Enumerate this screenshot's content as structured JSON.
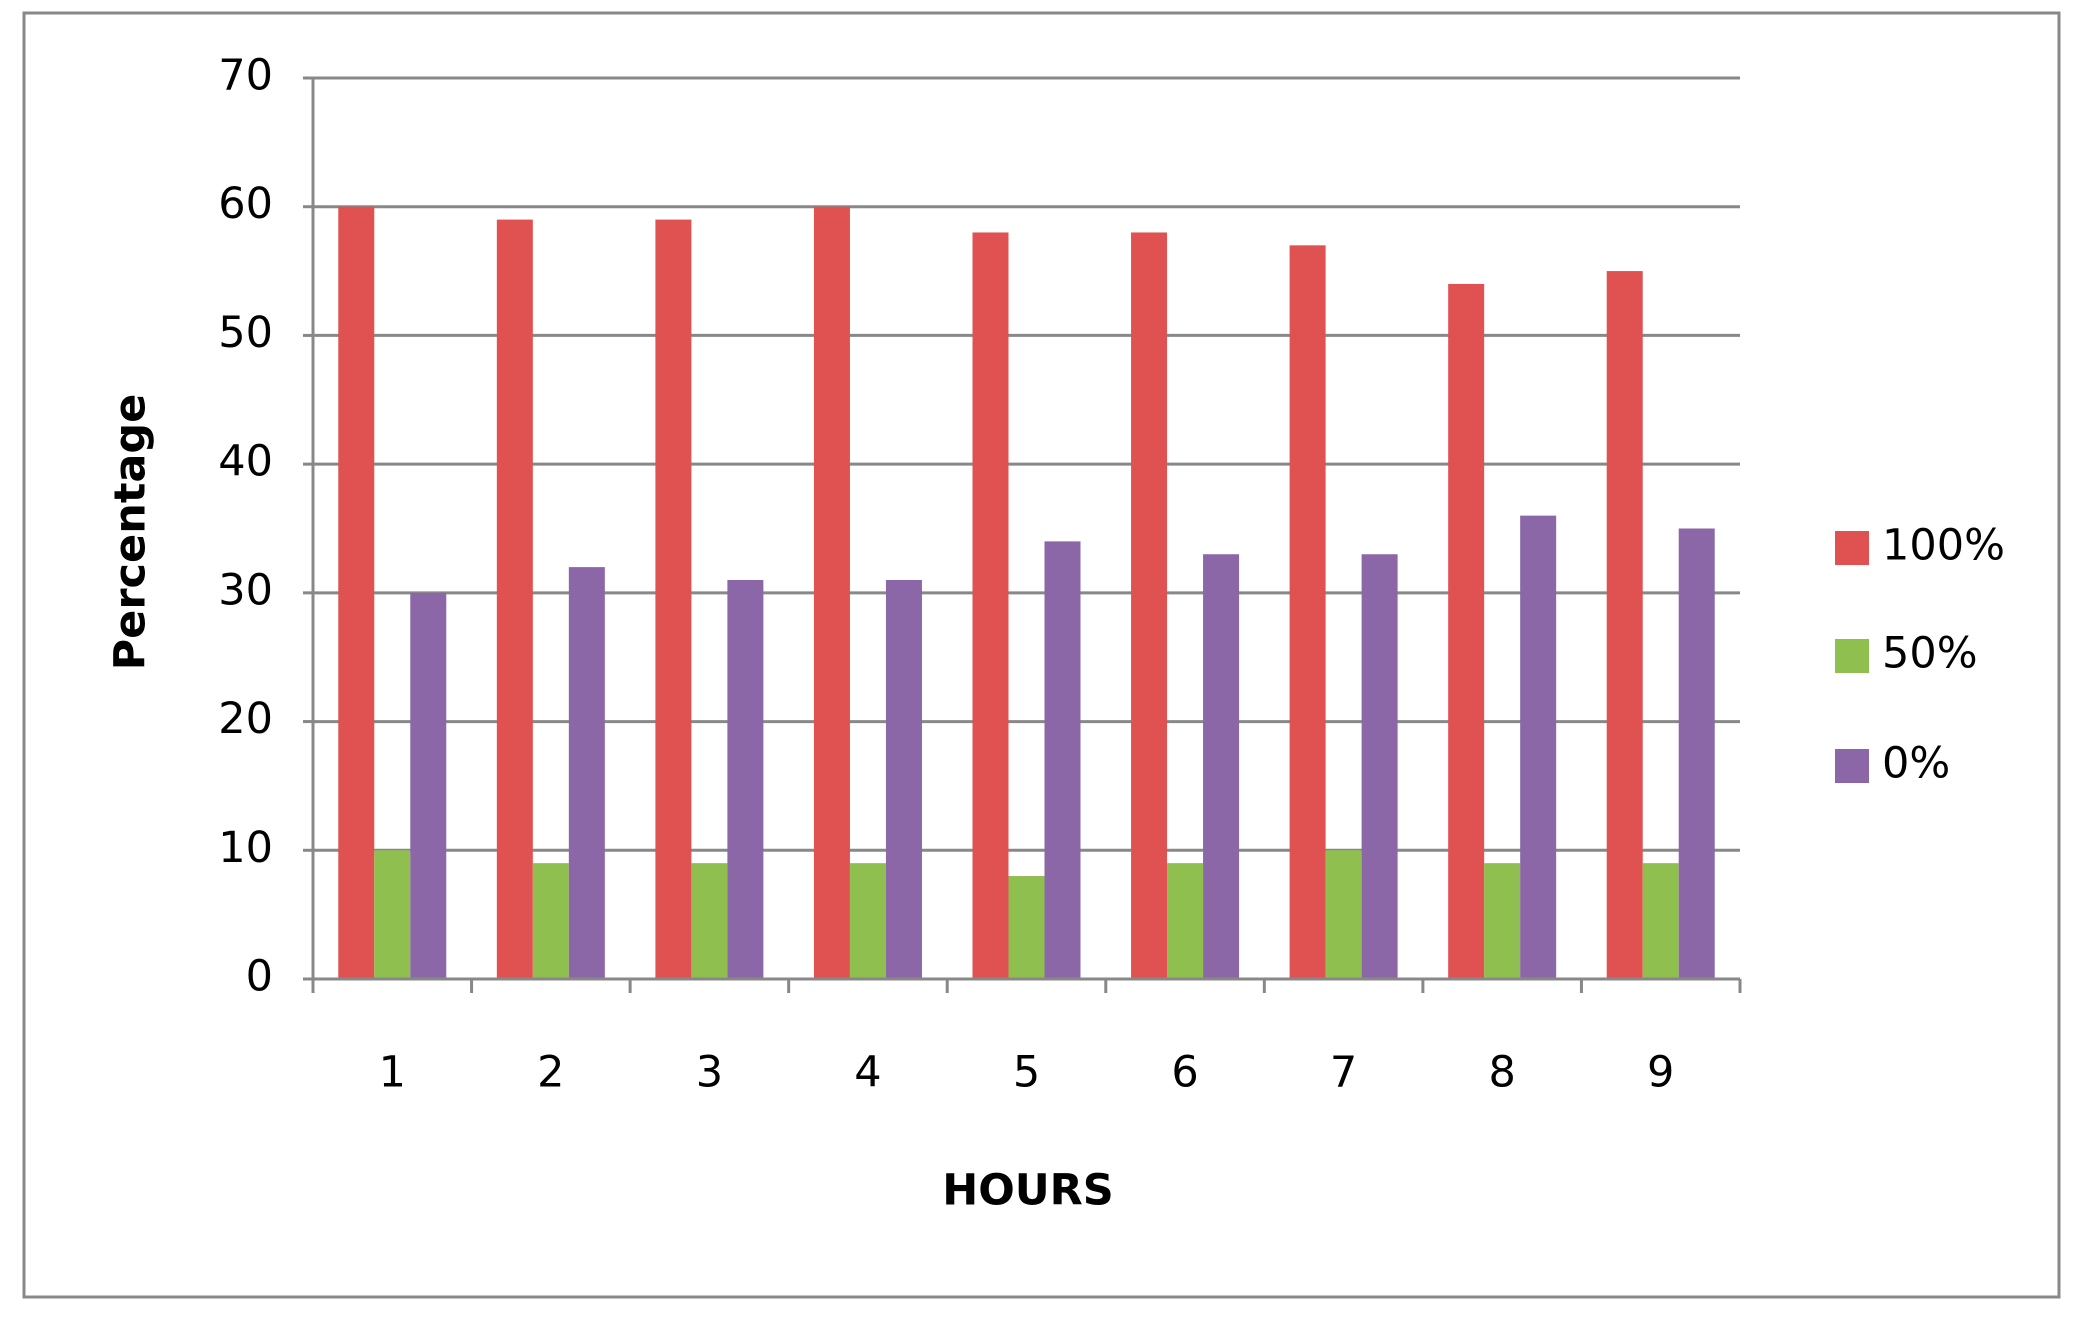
{
  "chart_data": {
    "type": "bar",
    "x_label": "HOURS",
    "y_label": "Percentage",
    "categories": [
      "1",
      "2",
      "3",
      "4",
      "5",
      "6",
      "7",
      "8",
      "9"
    ],
    "series": [
      {
        "name": "100%",
        "color": "#e05252",
        "values": [
          60,
          59,
          59,
          60,
          58,
          58,
          57,
          54,
          55
        ]
      },
      {
        "name": "50%",
        "color": "#8fbf4f",
        "values": [
          10,
          9,
          9,
          9,
          8,
          9,
          10,
          9,
          9
        ]
      },
      {
        "name": "0%",
        "color": "#8b67a8",
        "values": [
          30,
          32,
          31,
          31,
          34,
          33,
          33,
          36,
          35
        ]
      }
    ],
    "ylim": [
      0,
      70
    ],
    "yticks": [
      0,
      10,
      20,
      30,
      40,
      50,
      60,
      70
    ],
    "grid": true,
    "legend": "right"
  }
}
